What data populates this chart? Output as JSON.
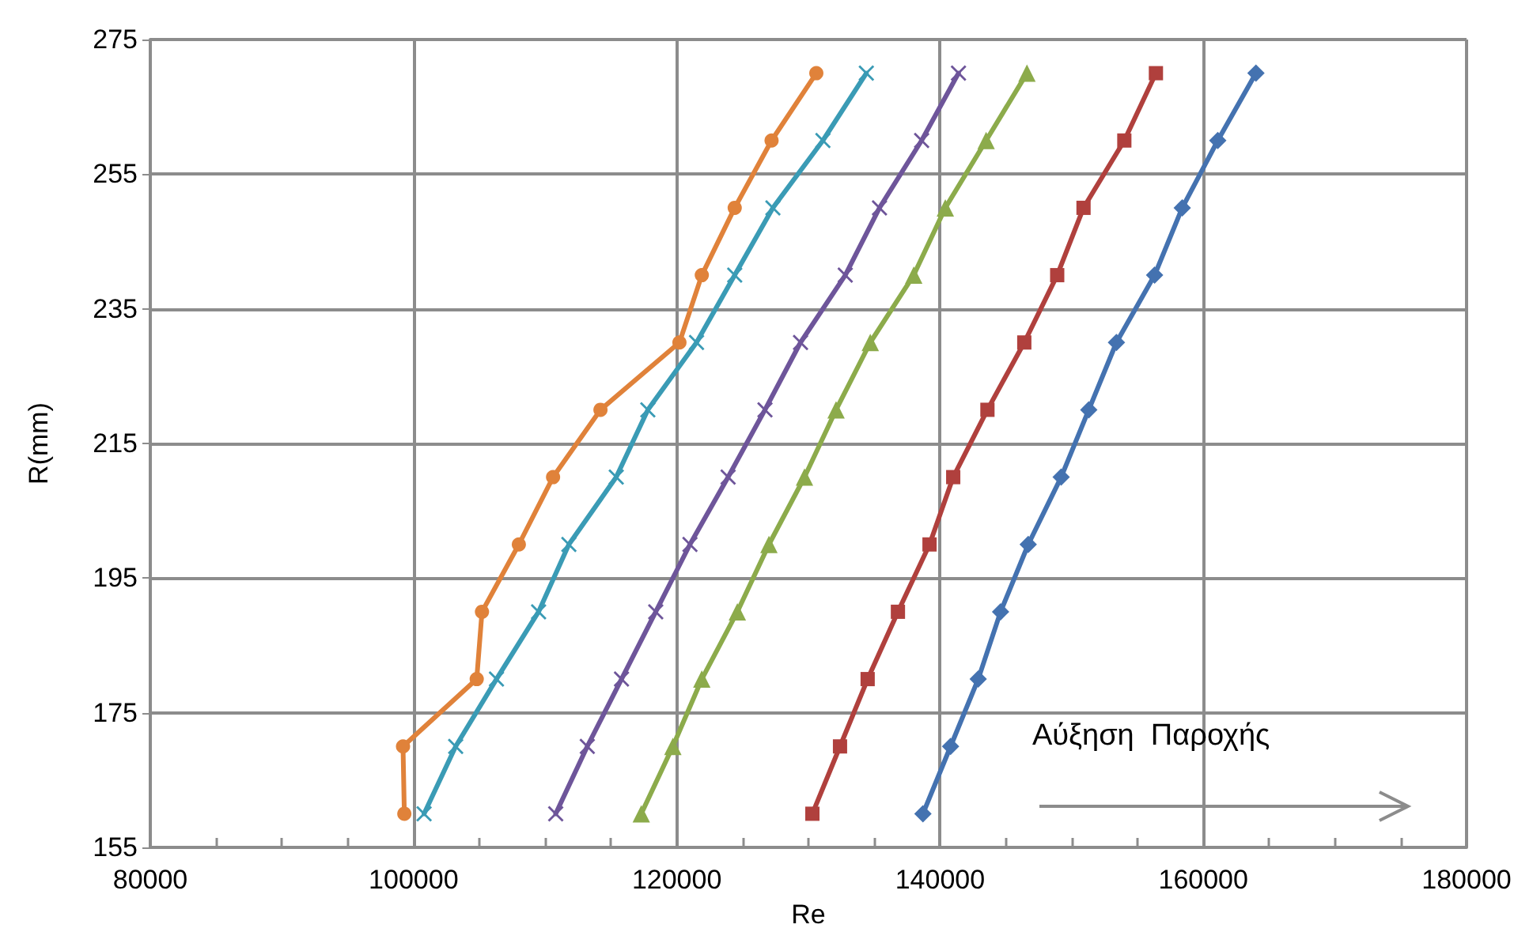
{
  "chart_data": {
    "type": "line",
    "xlabel": "Re",
    "ylabel": "R(mm)",
    "xlim": [
      80000,
      180000
    ],
    "xticks": [
      80000,
      100000,
      120000,
      140000,
      160000,
      180000
    ],
    "ylim": [
      155,
      275
    ],
    "yticks": [
      155,
      175,
      195,
      215,
      235,
      255,
      275
    ],
    "grid": true,
    "line_style": "solid",
    "annotations": [
      "Αύξηση  Παροχής"
    ],
    "series": [
      {
        "color": "#e0823a",
        "marker": "circle",
        "x": [
          99300,
          99200,
          104800,
          105200,
          108000,
          110600,
          114200,
          120200,
          121900,
          124400,
          127200,
          130600
        ],
        "values": [
          160,
          170,
          180,
          190,
          200,
          210,
          220,
          230,
          240,
          250,
          260,
          270
        ]
      },
      {
        "color": "#3a9bb5",
        "marker": "cross",
        "x": [
          100800,
          103200,
          106300,
          109500,
          111800,
          115400,
          117800,
          121500,
          124400,
          127300,
          131100,
          134400
        ],
        "values": [
          160,
          170,
          180,
          190,
          200,
          210,
          220,
          230,
          240,
          250,
          260,
          270
        ]
      },
      {
        "color": "#6e559a",
        "marker": "cross",
        "x": [
          110800,
          113200,
          115800,
          118400,
          121000,
          123900,
          126700,
          129400,
          132800,
          135400,
          138600,
          141400
        ],
        "values": [
          160,
          170,
          180,
          190,
          200,
          210,
          220,
          230,
          240,
          250,
          260,
          270
        ]
      },
      {
        "color": "#8cab4b",
        "marker": "triangle",
        "x": [
          117300,
          119700,
          121900,
          124600,
          127000,
          129700,
          132100,
          134700,
          138000,
          140400,
          143500,
          146600
        ],
        "values": [
          160,
          170,
          180,
          190,
          200,
          210,
          220,
          230,
          240,
          250,
          260,
          270
        ]
      },
      {
        "color": "#b0403d",
        "marker": "square",
        "x": [
          130300,
          132400,
          134500,
          136800,
          139200,
          141000,
          143600,
          146400,
          148900,
          150900,
          154000,
          156400
        ],
        "values": [
          160,
          170,
          180,
          190,
          200,
          210,
          220,
          230,
          240,
          250,
          260,
          270
        ]
      },
      {
        "color": "#4472b0",
        "marker": "diamond",
        "x": [
          138700,
          140800,
          142900,
          144600,
          146700,
          149200,
          151300,
          153400,
          156300,
          158400,
          161100,
          164000
        ],
        "values": [
          160,
          170,
          180,
          190,
          200,
          210,
          220,
          230,
          240,
          250,
          260,
          270
        ]
      }
    ]
  }
}
